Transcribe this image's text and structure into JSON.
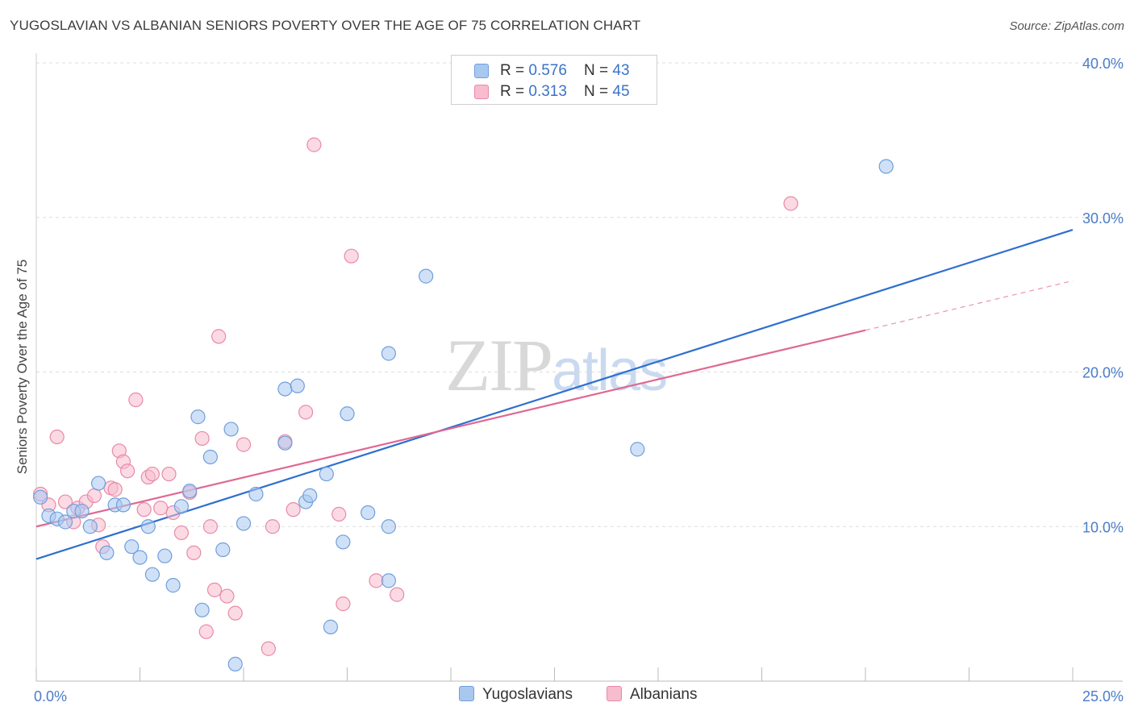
{
  "title": "YUGOSLAVIAN VS ALBANIAN SENIORS POVERTY OVER THE AGE OF 75 CORRELATION CHART",
  "source": "Source: ZipAtlas.com",
  "watermark": {
    "zip": "ZIP",
    "atlas": "atlas"
  },
  "colors": {
    "blue_fill": "#a9c8f0",
    "blue_stroke": "#6f9fdc",
    "blue_line": "#2e6fd0",
    "pink_fill": "#f7bccd",
    "pink_stroke": "#e98aa8",
    "pink_line": "#e06893",
    "grid": "#dddddd",
    "tick_text": "#4a7cc9"
  },
  "legend": {
    "rows": [
      {
        "r_label": "R = ",
        "r_value": "0.576",
        "n_label": "N = ",
        "n_value": "43"
      },
      {
        "r_label": "R = ",
        "r_value": "0.313",
        "n_label": "N = ",
        "n_value": "45"
      }
    ],
    "bottom": [
      "Yugoslavians",
      "Albanians"
    ]
  },
  "chart_data": {
    "type": "scatter",
    "title": "YUGOSLAVIAN VS ALBANIAN SENIORS POVERTY OVER THE AGE OF 75 CORRELATION CHART",
    "xlabel": "",
    "ylabel": "Seniors Poverty Over the Age of 75",
    "xlim": [
      0,
      25
    ],
    "ylim": [
      0,
      40
    ],
    "x_ticks": [
      {
        "value": 0,
        "label": "0.0%"
      },
      {
        "value": 25,
        "label": "25.0%"
      }
    ],
    "y_ticks": [
      {
        "value": 10,
        "label": "10.0%"
      },
      {
        "value": 20,
        "label": "20.0%"
      },
      {
        "value": 30,
        "label": "30.0%"
      },
      {
        "value": 40,
        "label": "40.0%"
      }
    ],
    "grid": true,
    "legend_position": "top-center",
    "series": [
      {
        "name": "Yugoslavians",
        "r": 0.576,
        "n": 43,
        "trend": {
          "x": [
            0,
            25
          ],
          "y": [
            7.9,
            29.2
          ]
        },
        "points": [
          [
            0.1,
            11.9
          ],
          [
            0.3,
            10.7
          ],
          [
            0.5,
            10.5
          ],
          [
            0.7,
            10.3
          ],
          [
            0.9,
            11.0
          ],
          [
            1.1,
            11.0
          ],
          [
            1.3,
            10.0
          ],
          [
            1.5,
            12.8
          ],
          [
            1.7,
            8.3
          ],
          [
            1.9,
            11.4
          ],
          [
            2.1,
            11.4
          ],
          [
            2.3,
            8.7
          ],
          [
            2.5,
            8.0
          ],
          [
            2.7,
            10.0
          ],
          [
            2.8,
            6.9
          ],
          [
            3.1,
            8.1
          ],
          [
            3.3,
            6.2
          ],
          [
            3.5,
            11.3
          ],
          [
            3.7,
            12.3
          ],
          [
            3.9,
            17.1
          ],
          [
            4.0,
            4.6
          ],
          [
            4.2,
            14.5
          ],
          [
            4.5,
            8.5
          ],
          [
            4.7,
            16.3
          ],
          [
            4.8,
            1.1
          ],
          [
            5.0,
            10.2
          ],
          [
            5.3,
            12.1
          ],
          [
            6.0,
            15.4
          ],
          [
            6.0,
            18.9
          ],
          [
            6.3,
            19.1
          ],
          [
            6.5,
            11.6
          ],
          [
            6.6,
            12.0
          ],
          [
            7.0,
            13.4
          ],
          [
            7.1,
            3.5
          ],
          [
            7.4,
            9.0
          ],
          [
            7.5,
            17.3
          ],
          [
            8.0,
            10.9
          ],
          [
            8.5,
            10.0
          ],
          [
            8.5,
            21.2
          ],
          [
            8.5,
            6.5
          ],
          [
            9.4,
            26.2
          ],
          [
            14.5,
            15.0
          ],
          [
            20.5,
            33.3
          ]
        ]
      },
      {
        "name": "Albanians",
        "r": 0.313,
        "n": 45,
        "trend": {
          "x": [
            0,
            20
          ],
          "y": [
            10.0,
            22.7
          ]
        },
        "trend_extension": {
          "x": [
            20,
            25
          ],
          "y": [
            22.7,
            25.9
          ]
        },
        "points": [
          [
            0.1,
            12.1
          ],
          [
            0.3,
            11.4
          ],
          [
            0.5,
            15.8
          ],
          [
            0.7,
            11.6
          ],
          [
            0.9,
            10.3
          ],
          [
            1.0,
            11.2
          ],
          [
            1.2,
            11.6
          ],
          [
            1.4,
            12.0
          ],
          [
            1.5,
            10.1
          ],
          [
            1.6,
            8.7
          ],
          [
            1.8,
            12.5
          ],
          [
            1.9,
            12.4
          ],
          [
            2.0,
            14.9
          ],
          [
            2.1,
            14.2
          ],
          [
            2.2,
            13.6
          ],
          [
            2.4,
            18.2
          ],
          [
            2.6,
            11.1
          ],
          [
            2.7,
            13.2
          ],
          [
            2.8,
            13.4
          ],
          [
            3.0,
            11.2
          ],
          [
            3.2,
            13.4
          ],
          [
            3.3,
            10.9
          ],
          [
            3.5,
            9.6
          ],
          [
            3.7,
            12.2
          ],
          [
            3.8,
            8.3
          ],
          [
            4.0,
            15.7
          ],
          [
            4.1,
            3.2
          ],
          [
            4.2,
            10.0
          ],
          [
            4.3,
            5.9
          ],
          [
            4.4,
            22.3
          ],
          [
            4.6,
            5.5
          ],
          [
            4.8,
            4.4
          ],
          [
            5.0,
            15.3
          ],
          [
            5.6,
            2.1
          ],
          [
            5.7,
            10.0
          ],
          [
            6.0,
            15.5
          ],
          [
            6.2,
            11.1
          ],
          [
            6.5,
            17.4
          ],
          [
            6.7,
            34.7
          ],
          [
            7.3,
            10.8
          ],
          [
            7.4,
            5.0
          ],
          [
            7.6,
            27.5
          ],
          [
            8.2,
            6.5
          ],
          [
            8.7,
            5.6
          ],
          [
            18.2,
            30.9
          ]
        ]
      }
    ]
  }
}
